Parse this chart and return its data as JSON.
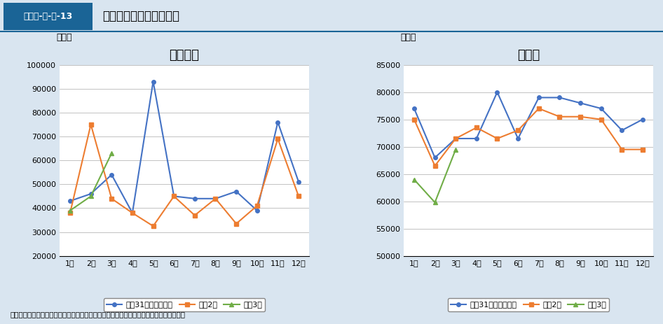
{
  "months": [
    "1月",
    "2月",
    "3月",
    "4月",
    "5月",
    "6月",
    "7月",
    "8月",
    "9月",
    "10月",
    "11月",
    "12月"
  ],
  "marriage": {
    "h31_r1": [
      43000,
      46000,
      54000,
      38000,
      93000,
      45000,
      44000,
      44000,
      47000,
      39000,
      76000,
      51000
    ],
    "r2": [
      38000,
      75000,
      44000,
      38000,
      32500,
      45000,
      37000,
      44000,
      33500,
      41000,
      69000,
      45000
    ],
    "r3": [
      39000,
      45000,
      63000,
      null,
      null,
      null,
      null,
      null,
      null,
      null,
      null,
      null
    ]
  },
  "births": {
    "h31_r1": [
      77000,
      68000,
      71500,
      71500,
      80000,
      71500,
      79000,
      79000,
      78000,
      77000,
      73000,
      75000
    ],
    "r2": [
      75000,
      66500,
      71500,
      73500,
      71500,
      73000,
      77000,
      75500,
      75500,
      75000,
      69500,
      69500
    ],
    "r3": [
      64000,
      59800,
      69500,
      null,
      null,
      null,
      null,
      null,
      null,
      null,
      null,
      null
    ]
  },
  "colors": {
    "h31_r1": "#4472C4",
    "r2": "#ED7D31",
    "r3": "#70AD47"
  },
  "marriage_ylim": [
    20000,
    100000
  ],
  "marriage_yticks": [
    20000,
    30000,
    40000,
    50000,
    60000,
    70000,
    80000,
    90000,
    100000
  ],
  "births_ylim": [
    50000,
    85000
  ],
  "births_yticks": [
    50000,
    55000,
    60000,
    65000,
    70000,
    75000,
    80000,
    85000
  ],
  "marriage_title": "婚姻件数",
  "births_title": "出生数",
  "marriage_ylabel": "（組）",
  "births_ylabel": "（人）",
  "legend_labels": [
    "平成31年・令和元年",
    "令和2年",
    "令和3年"
  ],
  "header_label": "図表１-２-３-13",
  "header_title": "婚姻件数と出生数の推移",
  "source": "資料：厚生労働省政策統括官付参事官付人口動態・保健社会統計室「人口動態統計速報」",
  "bg_color": "#d9e5f0",
  "plot_bg": "#ffffff",
  "header_bg": "#1a6496",
  "header_text_bg": "#ffffff"
}
